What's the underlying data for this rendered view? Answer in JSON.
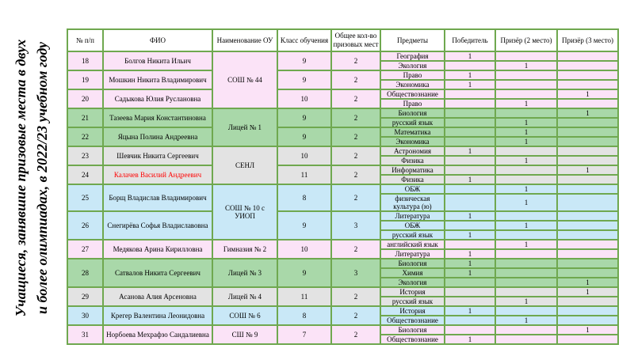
{
  "title": {
    "line1": "Учащиеся, занявшие призовые места в двух",
    "line2": "и более олимпиадах, в 2022/23 учебном году"
  },
  "table": {
    "headers": [
      "№ п/п",
      "ФИО",
      "Наименование ОУ",
      "Класс обучения",
      "Общее кол-во призовых мест",
      "Предметы",
      "Победитель",
      "Призёр (2 место)",
      "Призёр (3 место)"
    ],
    "colors": {
      "border": "#6fa84f",
      "pink": "#fbe3f7",
      "green": "#a9d8a9",
      "gray": "#e3e3e3",
      "blue": "#c9e8f7",
      "header_bg": "#ffffff",
      "red_text": "#ff0000"
    },
    "students": [
      {
        "num": "18",
        "name": "Болгов Никита Ильич",
        "school": "СОШ № 44",
        "grade": "9",
        "total": "2",
        "color": "pink",
        "subjects": [
          {
            "name": "География",
            "winner": "1",
            "second": "",
            "third": ""
          },
          {
            "name": "Экология",
            "winner": "",
            "second": "1",
            "third": ""
          }
        ]
      },
      {
        "num": "19",
        "name": "Мошкин Никита Владимирович",
        "school": "СОШ № 44",
        "grade": "9",
        "total": "2",
        "color": "pink",
        "subjects": [
          {
            "name": "Право",
            "winner": "1",
            "second": "",
            "third": ""
          },
          {
            "name": "Экономика",
            "winner": "1",
            "second": "",
            "third": ""
          }
        ]
      },
      {
        "num": "20",
        "name": "Садыкова Юлия Руслановна",
        "school": "СОШ № 44",
        "grade": "10",
        "total": "2",
        "color": "pink",
        "subjects": [
          {
            "name": "Обществознание",
            "winner": "",
            "second": "",
            "third": "1"
          },
          {
            "name": "Право",
            "winner": "",
            "second": "1",
            "third": ""
          }
        ]
      },
      {
        "num": "21",
        "name": "Тазеева Мария Константиновна",
        "school": "Лицей № 1",
        "grade": "9",
        "total": "2",
        "color": "green",
        "subjects": [
          {
            "name": "Биология",
            "winner": "",
            "second": "",
            "third": "1"
          },
          {
            "name": "русский язык",
            "winner": "",
            "second": "1",
            "third": ""
          }
        ]
      },
      {
        "num": "22",
        "name": "Яцына Полина Андреевна",
        "school": "Лицей № 1",
        "grade": "9",
        "total": "2",
        "color": "green",
        "subjects": [
          {
            "name": "Математика",
            "winner": "",
            "second": "1",
            "third": ""
          },
          {
            "name": "Экономика",
            "winner": "",
            "second": "1",
            "third": ""
          }
        ]
      },
      {
        "num": "23",
        "name": "Шевчик Никита Сергеевич",
        "school": "СЕНЛ",
        "grade": "10",
        "total": "2",
        "color": "gray",
        "subjects": [
          {
            "name": "Астрономия",
            "winner": "1",
            "second": "",
            "third": ""
          },
          {
            "name": "Физика",
            "winner": "",
            "second": "1",
            "third": ""
          }
        ]
      },
      {
        "num": "24",
        "name": "Калачев Василий Андреевич",
        "school": "СЕНЛ",
        "grade": "11",
        "total": "2",
        "color": "gray",
        "name_red": true,
        "subjects": [
          {
            "name": "Информатика",
            "winner": "",
            "second": "",
            "third": "1"
          },
          {
            "name": "Физика",
            "winner": "1",
            "second": "",
            "third": ""
          }
        ]
      },
      {
        "num": "25",
        "name": "Борщ Владислав Владимирович",
        "school": "СОШ № 10 с УИОП",
        "grade": "8",
        "total": "2",
        "color": "blue",
        "subjects": [
          {
            "name": "ОБЖ",
            "winner": "",
            "second": "1",
            "third": ""
          },
          {
            "name": "физическая культура (ю)",
            "winner": "",
            "second": "1",
            "third": ""
          }
        ]
      },
      {
        "num": "26",
        "name": "Снегирёва Софья Владиславовна",
        "school": "СОШ № 10 с УИОП",
        "grade": "9",
        "total": "3",
        "color": "blue",
        "subjects": [
          {
            "name": "Литература",
            "winner": "1",
            "second": "",
            "third": ""
          },
          {
            "name": "ОБЖ",
            "winner": "",
            "second": "1",
            "third": ""
          },
          {
            "name": "русский язык",
            "winner": "1",
            "second": "",
            "third": ""
          }
        ]
      },
      {
        "num": "27",
        "name": "Медякова Арина Кирилловна",
        "school": "Гимназия № 2",
        "grade": "10",
        "total": "2",
        "color": "pink",
        "subjects": [
          {
            "name": "английский язык",
            "winner": "",
            "second": "1",
            "third": ""
          },
          {
            "name": "Литература",
            "winner": "1",
            "second": "",
            "third": ""
          }
        ]
      },
      {
        "num": "28",
        "name": "Сатвалов Никита Сергеевич",
        "school": "Лицей № 3",
        "grade": "9",
        "total": "3",
        "color": "green",
        "subjects": [
          {
            "name": "Биология",
            "winner": "1",
            "second": "",
            "third": ""
          },
          {
            "name": "Химия",
            "winner": "1",
            "second": "",
            "third": ""
          },
          {
            "name": "Экология",
            "winner": "",
            "second": "",
            "third": "1"
          }
        ]
      },
      {
        "num": "29",
        "name": "Асанова Алия Арсеновна",
        "school": "Лицей № 4",
        "grade": "11",
        "total": "2",
        "color": "gray",
        "subjects": [
          {
            "name": "История",
            "winner": "",
            "second": "",
            "third": "1"
          },
          {
            "name": "русский язык",
            "winner": "",
            "second": "1",
            "third": ""
          }
        ]
      },
      {
        "num": "30",
        "name": "Крегер Валентина Леонидовна",
        "school": "СОШ № 6",
        "grade": "8",
        "total": "2",
        "color": "blue",
        "subjects": [
          {
            "name": "История",
            "winner": "1",
            "second": "",
            "third": ""
          },
          {
            "name": "Обществознание",
            "winner": "",
            "second": "1",
            "third": ""
          }
        ]
      },
      {
        "num": "31",
        "name": "Норбоева Мехрафзо Сандалиевна",
        "school": "СШ № 9",
        "grade": "7",
        "total": "2",
        "color": "pink",
        "subjects": [
          {
            "name": "Биология",
            "winner": "",
            "second": "",
            "third": "1"
          },
          {
            "name": "Обществознание",
            "winner": "1",
            "second": "",
            "third": ""
          }
        ]
      }
    ]
  }
}
